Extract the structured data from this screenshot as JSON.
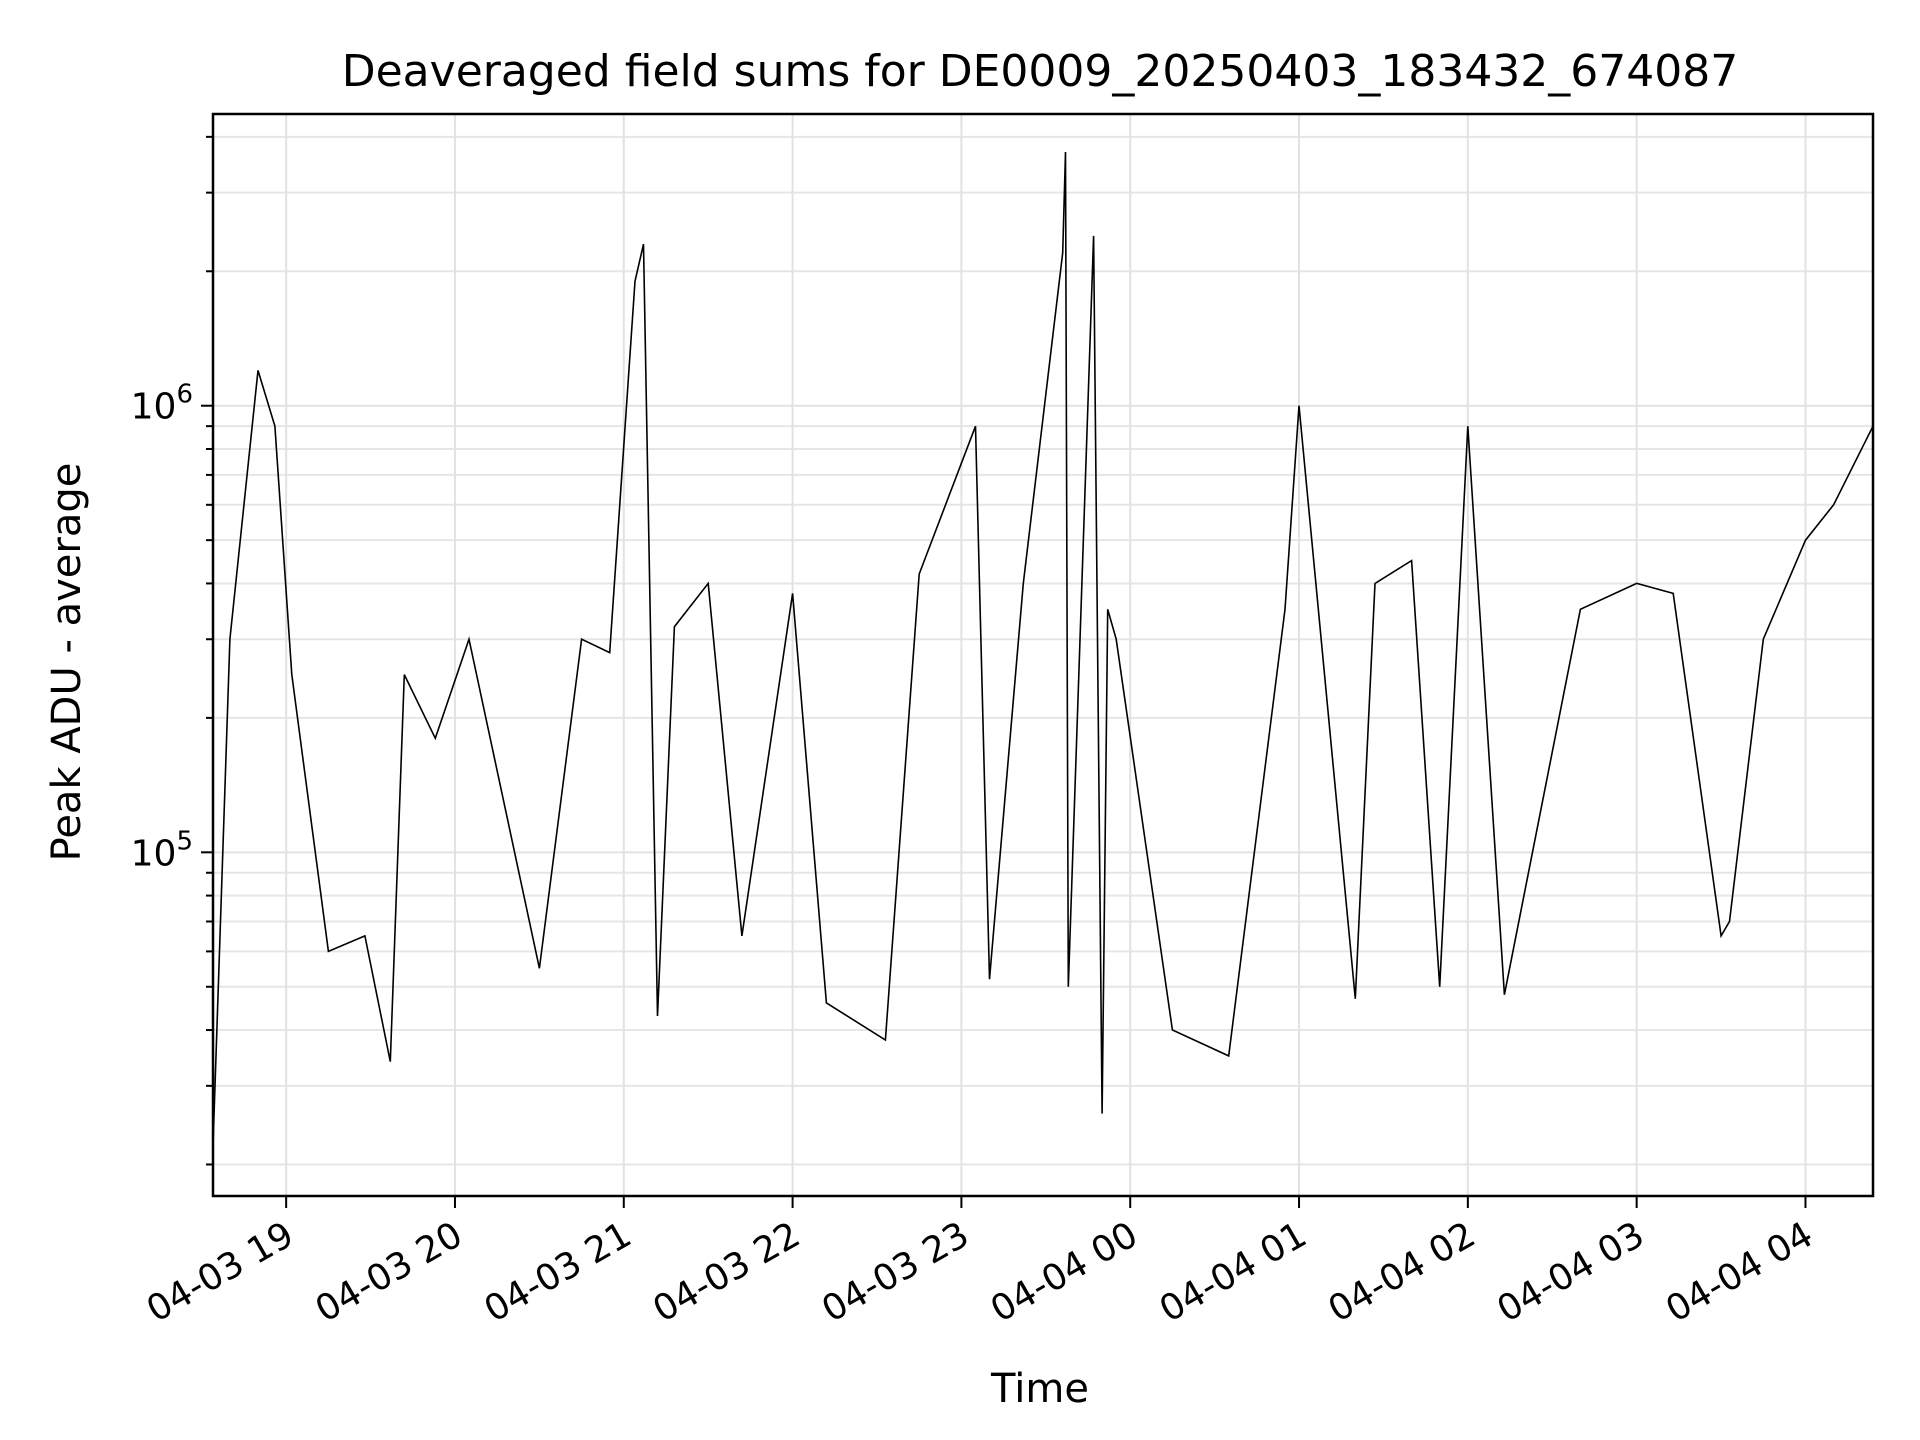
{
  "chart_data": {
    "type": "line",
    "title": "Deaveraged field sums for DE0009_20250403_183432_674087",
    "xlabel": "Time",
    "ylabel": "Peak ADU - average",
    "y_scale": "log",
    "ylim": [
      17000,
      4500000
    ],
    "xlim": [
      "2025-04-03 18:34",
      "2025-04-04 04:24"
    ],
    "grid": true,
    "line_color": "#000000",
    "x_ticks": [
      {
        "t": "2025-04-03 19:00",
        "label": "04-03 19"
      },
      {
        "t": "2025-04-03 20:00",
        "label": "04-03 20"
      },
      {
        "t": "2025-04-03 21:00",
        "label": "04-03 21"
      },
      {
        "t": "2025-04-03 22:00",
        "label": "04-03 22"
      },
      {
        "t": "2025-04-03 23:00",
        "label": "04-03 23"
      },
      {
        "t": "2025-04-04 00:00",
        "label": "04-04 00"
      },
      {
        "t": "2025-04-04 01:00",
        "label": "04-04 01"
      },
      {
        "t": "2025-04-04 02:00",
        "label": "04-04 02"
      },
      {
        "t": "2025-04-04 03:00",
        "label": "04-04 03"
      },
      {
        "t": "2025-04-04 04:00",
        "label": "04-04 04"
      }
    ],
    "y_ticks": [
      {
        "value": 100000,
        "base": "10",
        "exp": "5"
      },
      {
        "value": 1000000,
        "base": "10",
        "exp": "6"
      }
    ],
    "series": [
      {
        "x": [
          "2025-04-03 18:34",
          "2025-04-03 18:40",
          "2025-04-03 18:50",
          "2025-04-03 18:56",
          "2025-04-03 19:02",
          "2025-04-03 19:15",
          "2025-04-03 19:28",
          "2025-04-03 19:37",
          "2025-04-03 19:42",
          "2025-04-03 19:53",
          "2025-04-03 20:05",
          "2025-04-03 20:30",
          "2025-04-03 20:45",
          "2025-04-03 20:55",
          "2025-04-03 21:04",
          "2025-04-03 21:07",
          "2025-04-03 21:12",
          "2025-04-03 21:18",
          "2025-04-03 21:30",
          "2025-04-03 21:42",
          "2025-04-03 22:00",
          "2025-04-03 22:12",
          "2025-04-03 22:33",
          "2025-04-03 22:45",
          "2025-04-03 23:05",
          "2025-04-03 23:10",
          "2025-04-03 23:22",
          "2025-04-03 23:36",
          "2025-04-03 23:37",
          "2025-04-03 23:38",
          "2025-04-03 23:47",
          "2025-04-03 23:50",
          "2025-04-03 23:52",
          "2025-04-03 23:55",
          "2025-04-04 00:15",
          "2025-04-04 00:35",
          "2025-04-04 00:55",
          "2025-04-04 01:00",
          "2025-04-04 01:20",
          "2025-04-04 01:27",
          "2025-04-04 01:40",
          "2025-04-04 01:50",
          "2025-04-04 02:00",
          "2025-04-04 02:13",
          "2025-04-04 02:40",
          "2025-04-04 03:00",
          "2025-04-04 03:13",
          "2025-04-04 03:30",
          "2025-04-04 03:33",
          "2025-04-04 03:45",
          "2025-04-04 04:00",
          "2025-04-04 04:10",
          "2025-04-04 04:24"
        ],
        "y": [
          22000,
          300000,
          1200000,
          900000,
          250000,
          60000,
          65000,
          34000,
          250000,
          180000,
          300000,
          55000,
          300000,
          280000,
          1900000,
          2300000,
          43000,
          320000,
          400000,
          65000,
          380000,
          46000,
          38000,
          420000,
          900000,
          52000,
          400000,
          2200000,
          3700000,
          50000,
          2400000,
          26000,
          350000,
          300000,
          40000,
          35000,
          350000,
          1000000,
          47000,
          400000,
          450000,
          50000,
          900000,
          48000,
          350000,
          400000,
          380000,
          65000,
          70000,
          300000,
          500000,
          600000,
          900000
        ]
      }
    ]
  }
}
